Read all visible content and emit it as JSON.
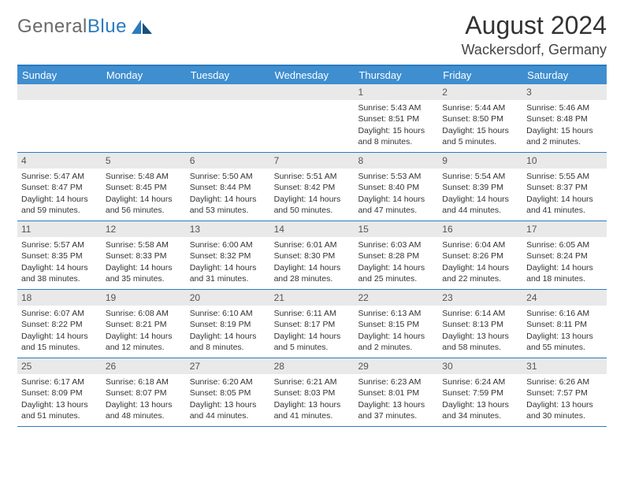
{
  "logo": {
    "general": "General",
    "blue": "Blue"
  },
  "title": "August 2024",
  "location": "Wackersdorf, Germany",
  "colors": {
    "header_bg": "#3f8ecf",
    "header_border_top": "#2b7bbf",
    "row_divider": "#2b7bbf",
    "daynum_bg": "#e9e9e9",
    "text": "#333333",
    "logo_gray": "#6a6a6a",
    "logo_blue": "#2b7bbf"
  },
  "day_headers": [
    "Sunday",
    "Monday",
    "Tuesday",
    "Wednesday",
    "Thursday",
    "Friday",
    "Saturday"
  ],
  "weeks": [
    [
      {
        "day": null
      },
      {
        "day": null
      },
      {
        "day": null
      },
      {
        "day": null
      },
      {
        "day": "1",
        "sunrise": "Sunrise: 5:43 AM",
        "sunset": "Sunset: 8:51 PM",
        "daylight": "Daylight: 15 hours and 8 minutes."
      },
      {
        "day": "2",
        "sunrise": "Sunrise: 5:44 AM",
        "sunset": "Sunset: 8:50 PM",
        "daylight": "Daylight: 15 hours and 5 minutes."
      },
      {
        "day": "3",
        "sunrise": "Sunrise: 5:46 AM",
        "sunset": "Sunset: 8:48 PM",
        "daylight": "Daylight: 15 hours and 2 minutes."
      }
    ],
    [
      {
        "day": "4",
        "sunrise": "Sunrise: 5:47 AM",
        "sunset": "Sunset: 8:47 PM",
        "daylight": "Daylight: 14 hours and 59 minutes."
      },
      {
        "day": "5",
        "sunrise": "Sunrise: 5:48 AM",
        "sunset": "Sunset: 8:45 PM",
        "daylight": "Daylight: 14 hours and 56 minutes."
      },
      {
        "day": "6",
        "sunrise": "Sunrise: 5:50 AM",
        "sunset": "Sunset: 8:44 PM",
        "daylight": "Daylight: 14 hours and 53 minutes."
      },
      {
        "day": "7",
        "sunrise": "Sunrise: 5:51 AM",
        "sunset": "Sunset: 8:42 PM",
        "daylight": "Daylight: 14 hours and 50 minutes."
      },
      {
        "day": "8",
        "sunrise": "Sunrise: 5:53 AM",
        "sunset": "Sunset: 8:40 PM",
        "daylight": "Daylight: 14 hours and 47 minutes."
      },
      {
        "day": "9",
        "sunrise": "Sunrise: 5:54 AM",
        "sunset": "Sunset: 8:39 PM",
        "daylight": "Daylight: 14 hours and 44 minutes."
      },
      {
        "day": "10",
        "sunrise": "Sunrise: 5:55 AM",
        "sunset": "Sunset: 8:37 PM",
        "daylight": "Daylight: 14 hours and 41 minutes."
      }
    ],
    [
      {
        "day": "11",
        "sunrise": "Sunrise: 5:57 AM",
        "sunset": "Sunset: 8:35 PM",
        "daylight": "Daylight: 14 hours and 38 minutes."
      },
      {
        "day": "12",
        "sunrise": "Sunrise: 5:58 AM",
        "sunset": "Sunset: 8:33 PM",
        "daylight": "Daylight: 14 hours and 35 minutes."
      },
      {
        "day": "13",
        "sunrise": "Sunrise: 6:00 AM",
        "sunset": "Sunset: 8:32 PM",
        "daylight": "Daylight: 14 hours and 31 minutes."
      },
      {
        "day": "14",
        "sunrise": "Sunrise: 6:01 AM",
        "sunset": "Sunset: 8:30 PM",
        "daylight": "Daylight: 14 hours and 28 minutes."
      },
      {
        "day": "15",
        "sunrise": "Sunrise: 6:03 AM",
        "sunset": "Sunset: 8:28 PM",
        "daylight": "Daylight: 14 hours and 25 minutes."
      },
      {
        "day": "16",
        "sunrise": "Sunrise: 6:04 AM",
        "sunset": "Sunset: 8:26 PM",
        "daylight": "Daylight: 14 hours and 22 minutes."
      },
      {
        "day": "17",
        "sunrise": "Sunrise: 6:05 AM",
        "sunset": "Sunset: 8:24 PM",
        "daylight": "Daylight: 14 hours and 18 minutes."
      }
    ],
    [
      {
        "day": "18",
        "sunrise": "Sunrise: 6:07 AM",
        "sunset": "Sunset: 8:22 PM",
        "daylight": "Daylight: 14 hours and 15 minutes."
      },
      {
        "day": "19",
        "sunrise": "Sunrise: 6:08 AM",
        "sunset": "Sunset: 8:21 PM",
        "daylight": "Daylight: 14 hours and 12 minutes."
      },
      {
        "day": "20",
        "sunrise": "Sunrise: 6:10 AM",
        "sunset": "Sunset: 8:19 PM",
        "daylight": "Daylight: 14 hours and 8 minutes."
      },
      {
        "day": "21",
        "sunrise": "Sunrise: 6:11 AM",
        "sunset": "Sunset: 8:17 PM",
        "daylight": "Daylight: 14 hours and 5 minutes."
      },
      {
        "day": "22",
        "sunrise": "Sunrise: 6:13 AM",
        "sunset": "Sunset: 8:15 PM",
        "daylight": "Daylight: 14 hours and 2 minutes."
      },
      {
        "day": "23",
        "sunrise": "Sunrise: 6:14 AM",
        "sunset": "Sunset: 8:13 PM",
        "daylight": "Daylight: 13 hours and 58 minutes."
      },
      {
        "day": "24",
        "sunrise": "Sunrise: 6:16 AM",
        "sunset": "Sunset: 8:11 PM",
        "daylight": "Daylight: 13 hours and 55 minutes."
      }
    ],
    [
      {
        "day": "25",
        "sunrise": "Sunrise: 6:17 AM",
        "sunset": "Sunset: 8:09 PM",
        "daylight": "Daylight: 13 hours and 51 minutes."
      },
      {
        "day": "26",
        "sunrise": "Sunrise: 6:18 AM",
        "sunset": "Sunset: 8:07 PM",
        "daylight": "Daylight: 13 hours and 48 minutes."
      },
      {
        "day": "27",
        "sunrise": "Sunrise: 6:20 AM",
        "sunset": "Sunset: 8:05 PM",
        "daylight": "Daylight: 13 hours and 44 minutes."
      },
      {
        "day": "28",
        "sunrise": "Sunrise: 6:21 AM",
        "sunset": "Sunset: 8:03 PM",
        "daylight": "Daylight: 13 hours and 41 minutes."
      },
      {
        "day": "29",
        "sunrise": "Sunrise: 6:23 AM",
        "sunset": "Sunset: 8:01 PM",
        "daylight": "Daylight: 13 hours and 37 minutes."
      },
      {
        "day": "30",
        "sunrise": "Sunrise: 6:24 AM",
        "sunset": "Sunset: 7:59 PM",
        "daylight": "Daylight: 13 hours and 34 minutes."
      },
      {
        "day": "31",
        "sunrise": "Sunrise: 6:26 AM",
        "sunset": "Sunset: 7:57 PM",
        "daylight": "Daylight: 13 hours and 30 minutes."
      }
    ]
  ]
}
